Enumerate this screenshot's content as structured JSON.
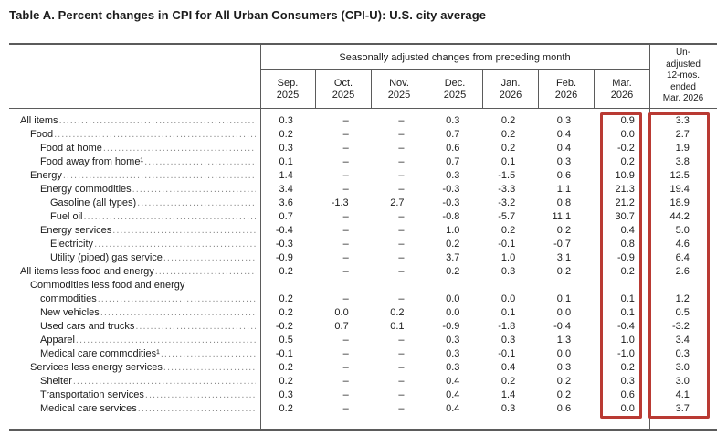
{
  "title": "Table A. Percent changes in CPI for All Urban Consumers (CPI-U): U.S. city average",
  "table": {
    "group_header": "Seasonally adjusted changes from preceding month",
    "unadjusted_header_lines": [
      "Un-",
      "adjusted",
      "12-mos.",
      "ended",
      "Mar. 2026"
    ],
    "month_columns": [
      {
        "month": "Sep.",
        "year": "2025"
      },
      {
        "month": "Oct.",
        "year": "2025"
      },
      {
        "month": "Nov.",
        "year": "2025"
      },
      {
        "month": "Dec.",
        "year": "2025"
      },
      {
        "month": "Jan.",
        "year": "2026"
      },
      {
        "month": "Feb.",
        "year": "2026"
      },
      {
        "month": "Mar.",
        "year": "2026"
      }
    ],
    "missing_value_symbol": "–",
    "rows": [
      {
        "label": "All items",
        "indent": 0,
        "values": [
          "0.3",
          "–",
          "–",
          "0.3",
          "0.2",
          "0.3",
          "0.9"
        ],
        "annual": "3.3"
      },
      {
        "label": "Food",
        "indent": 1,
        "values": [
          "0.2",
          "–",
          "–",
          "0.7",
          "0.2",
          "0.4",
          "0.0"
        ],
        "annual": "2.7"
      },
      {
        "label": "Food at home",
        "indent": 2,
        "values": [
          "0.3",
          "–",
          "–",
          "0.6",
          "0.2",
          "0.4",
          "-0.2"
        ],
        "annual": "1.9"
      },
      {
        "label": "Food away from home¹",
        "indent": 2,
        "values": [
          "0.1",
          "–",
          "–",
          "0.7",
          "0.1",
          "0.3",
          "0.2"
        ],
        "annual": "3.8"
      },
      {
        "label": "Energy",
        "indent": 1,
        "values": [
          "1.4",
          "–",
          "–",
          "0.3",
          "-1.5",
          "0.6",
          "10.9"
        ],
        "annual": "12.5"
      },
      {
        "label": "Energy commodities",
        "indent": 2,
        "values": [
          "3.4",
          "–",
          "–",
          "-0.3",
          "-3.3",
          "1.1",
          "21.3"
        ],
        "annual": "19.4"
      },
      {
        "label": "Gasoline (all types)",
        "indent": 3,
        "values": [
          "3.6",
          "-1.3",
          "2.7",
          "-0.3",
          "-3.2",
          "0.8",
          "21.2"
        ],
        "annual": "18.9"
      },
      {
        "label": "Fuel oil",
        "indent": 3,
        "values": [
          "0.7",
          "–",
          "–",
          "-0.8",
          "-5.7",
          "11.1",
          "30.7"
        ],
        "annual": "44.2"
      },
      {
        "label": "Energy services",
        "indent": 2,
        "values": [
          "-0.4",
          "–",
          "–",
          "1.0",
          "0.2",
          "0.2",
          "0.4"
        ],
        "annual": "5.0"
      },
      {
        "label": "Electricity",
        "indent": 3,
        "values": [
          "-0.3",
          "–",
          "–",
          "0.2",
          "-0.1",
          "-0.7",
          "0.8"
        ],
        "annual": "4.6"
      },
      {
        "label": "Utility (piped) gas service",
        "indent": 3,
        "values": [
          "-0.9",
          "–",
          "–",
          "3.7",
          "1.0",
          "3.1",
          "-0.9"
        ],
        "annual": "6.4"
      },
      {
        "label": "All items less food and energy",
        "indent": 0,
        "values": [
          "0.2",
          "–",
          "–",
          "0.2",
          "0.3",
          "0.2",
          "0.2"
        ],
        "annual": "2.6"
      },
      {
        "label": "Commodities less food and energy",
        "label2": "commodities",
        "indent": 1,
        "values": [
          "0.2",
          "–",
          "–",
          "0.0",
          "0.0",
          "0.1",
          "0.1"
        ],
        "annual": "1.2"
      },
      {
        "label": "New vehicles",
        "indent": 2,
        "values": [
          "0.2",
          "0.0",
          "0.2",
          "0.0",
          "0.1",
          "0.0",
          "0.1"
        ],
        "annual": "0.5"
      },
      {
        "label": "Used cars and trucks",
        "indent": 2,
        "values": [
          "-0.2",
          "0.7",
          "0.1",
          "-0.9",
          "-1.8",
          "-0.4",
          "-0.4"
        ],
        "annual": "-3.2"
      },
      {
        "label": "Apparel",
        "indent": 2,
        "values": [
          "0.5",
          "–",
          "–",
          "0.3",
          "0.3",
          "1.3",
          "1.0"
        ],
        "annual": "3.4"
      },
      {
        "label": "Medical care commodities¹",
        "indent": 2,
        "values": [
          "-0.1",
          "–",
          "–",
          "0.3",
          "-0.1",
          "0.0",
          "-1.0"
        ],
        "annual": "0.3"
      },
      {
        "label": "Services less energy services",
        "indent": 1,
        "values": [
          "0.2",
          "–",
          "–",
          "0.3",
          "0.4",
          "0.3",
          "0.2"
        ],
        "annual": "3.0"
      },
      {
        "label": "Shelter",
        "indent": 2,
        "values": [
          "0.2",
          "–",
          "–",
          "0.4",
          "0.2",
          "0.2",
          "0.3"
        ],
        "annual": "3.0"
      },
      {
        "label": "Transportation services",
        "indent": 2,
        "values": [
          "0.3",
          "–",
          "–",
          "0.4",
          "1.4",
          "0.2",
          "0.6"
        ],
        "annual": "4.1"
      },
      {
        "label": "Medical care services",
        "indent": 2,
        "values": [
          "0.2",
          "–",
          "–",
          "0.4",
          "0.3",
          "0.6",
          "0.0"
        ],
        "annual": "3.7"
      }
    ]
  },
  "highlights": {
    "box_color": "#b93a33",
    "boxed_columns": [
      "Mar. 2026",
      "Un-adjusted 12-mos. ended Mar. 2026"
    ]
  }
}
